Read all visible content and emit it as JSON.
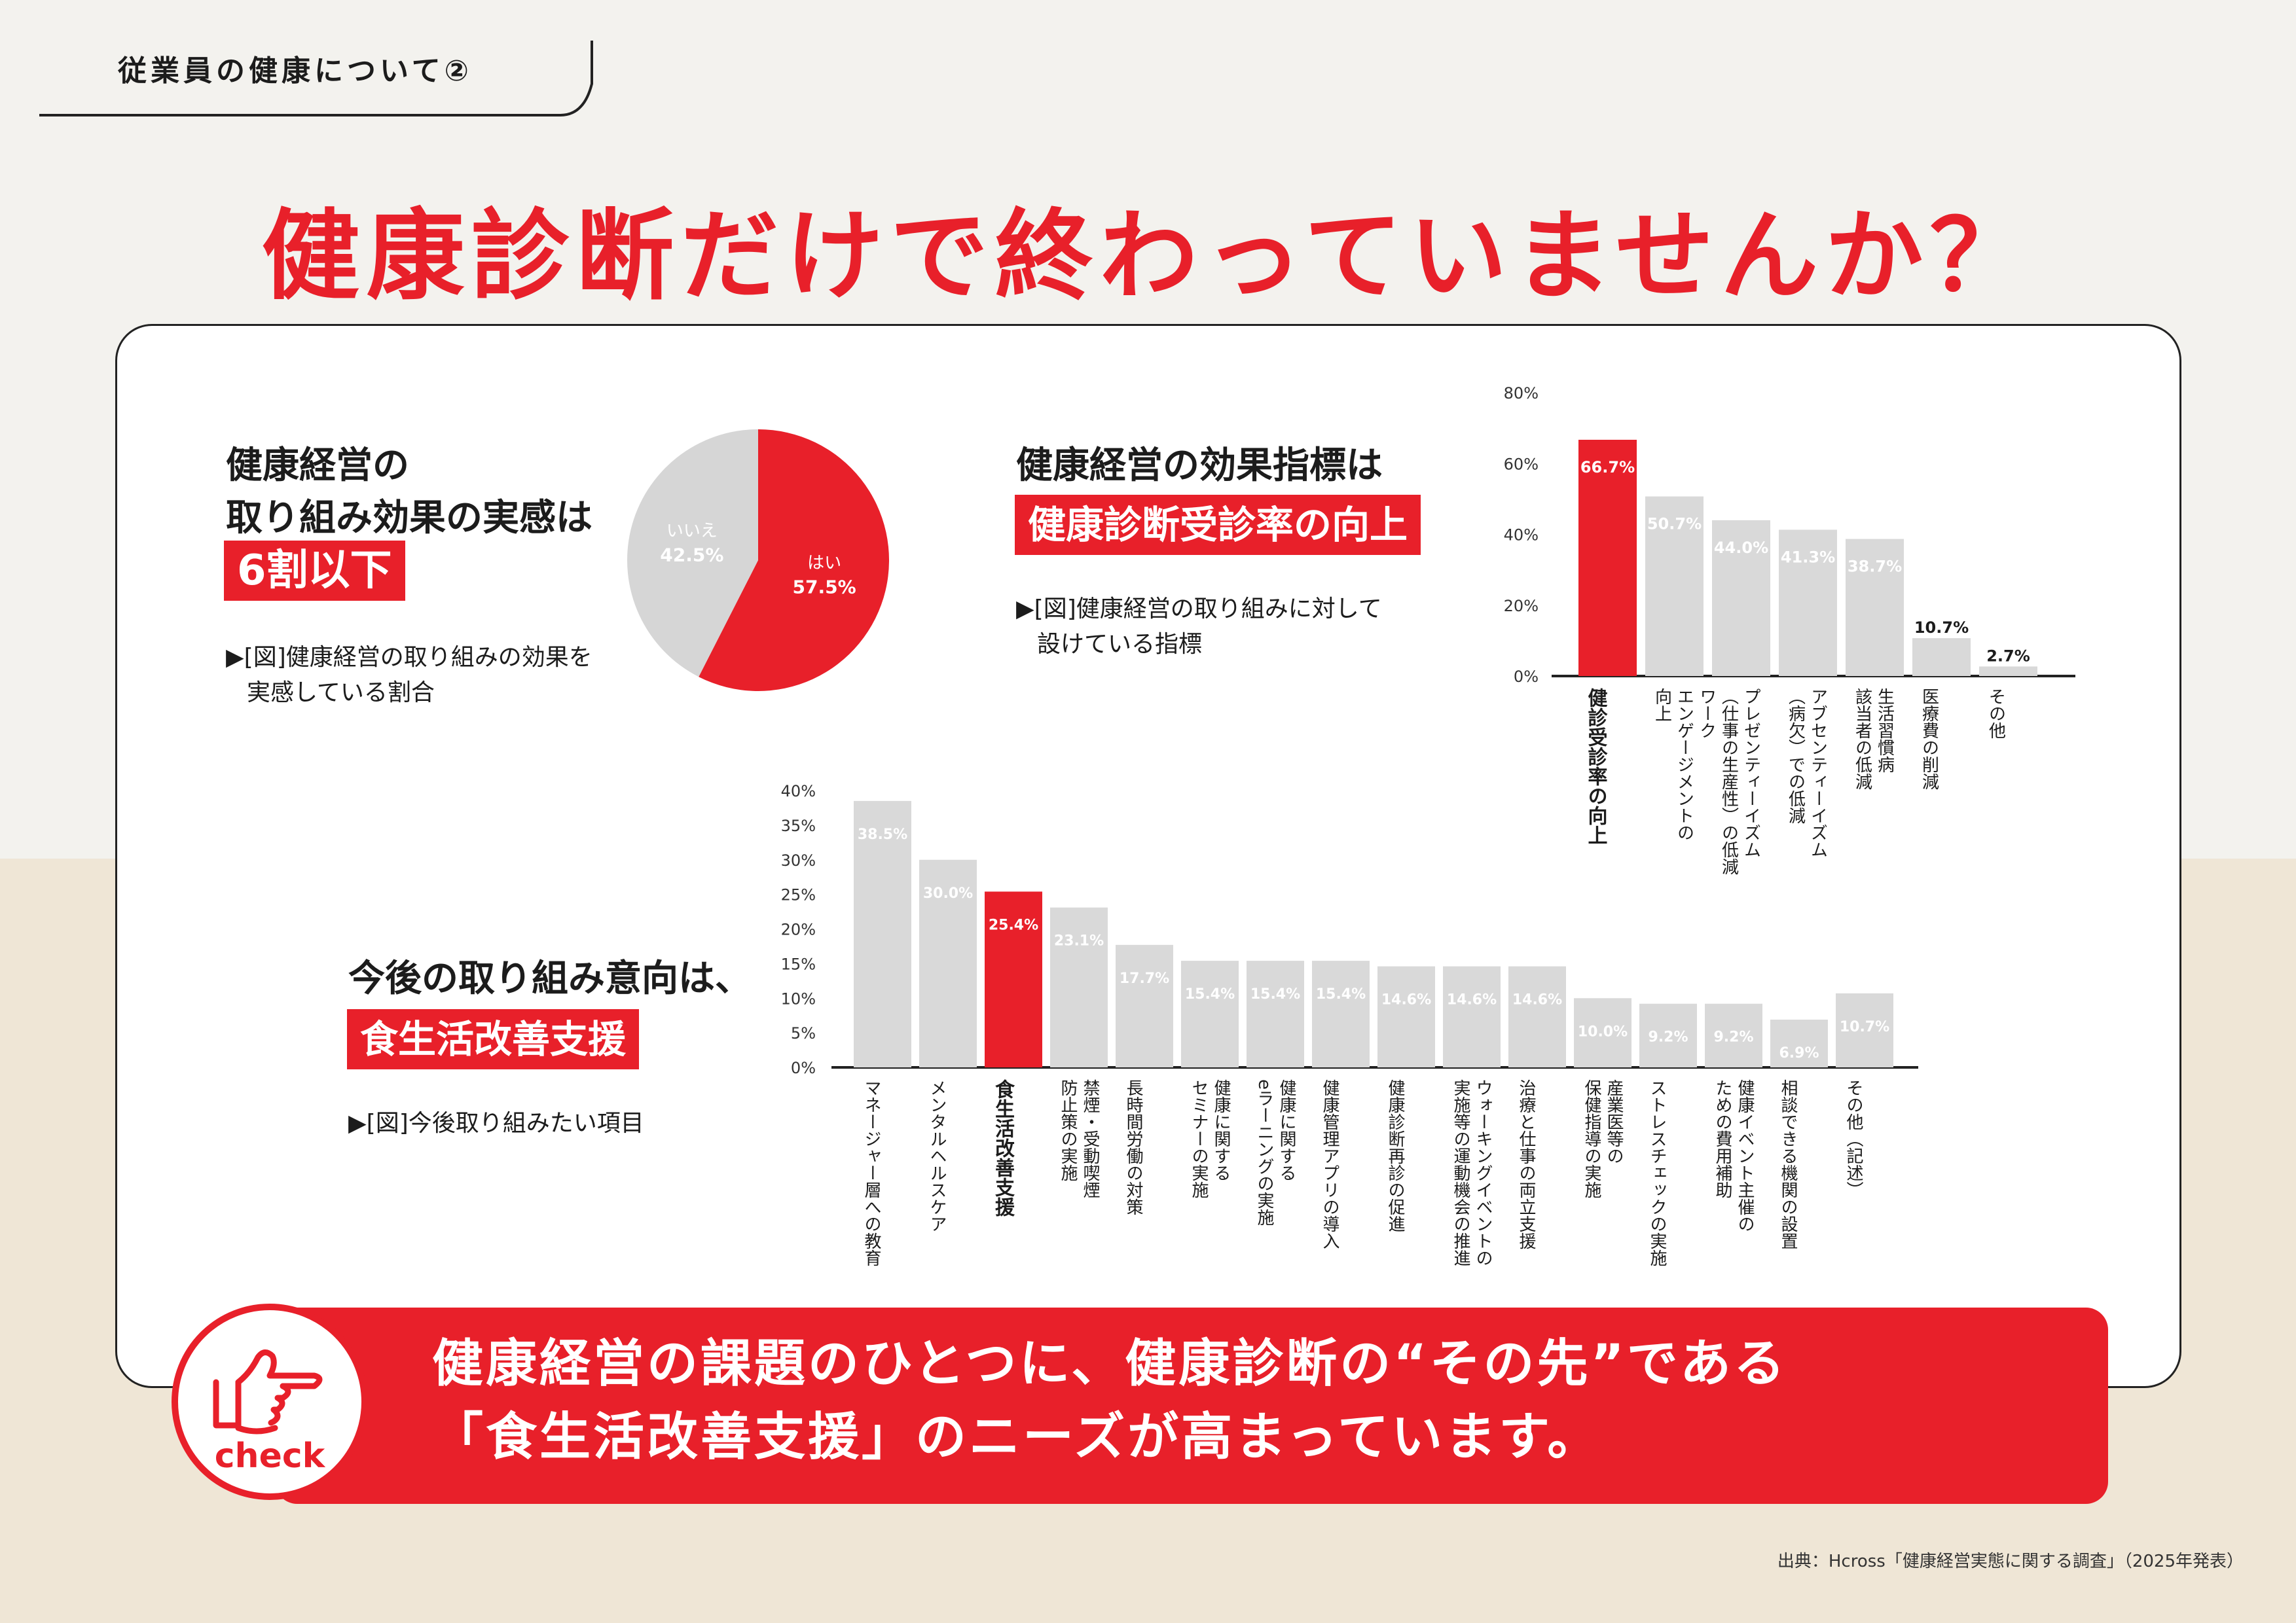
{
  "header": {
    "section_tag": "従業員の健康について②",
    "main_heading": "健康診断だけで終わっていませんか？"
  },
  "colors": {
    "accent": "#e8202a",
    "bar_gray": "#d9d9d9",
    "pie_gray": "#d6d6d6"
  },
  "block1": {
    "heading_line1": "健康経営の",
    "heading_line2": "取り組み効果の実感は",
    "highlight": "6割以下",
    "note_line1": "▶[図]健康経営の取り組みの効果を",
    "note_line2": "実感している割合"
  },
  "block2": {
    "heading": "健康経営の効果指標は",
    "highlight": "健康診断受診率の向上",
    "note_line1": "▶[図]健康経営の取り組みに対して",
    "note_line2": "設けている指標"
  },
  "block3": {
    "heading": "今後の取り組み意向は、",
    "highlight": "食生活改善支援",
    "note": "▶[図]今後取り組みたい項目"
  },
  "chart_data": [
    {
      "type": "pie",
      "categories": [
        "はい",
        "いいえ"
      ],
      "values": [
        57.5,
        42.5
      ],
      "value_labels": [
        "57.5%",
        "42.5%"
      ],
      "colors": [
        "#e8202a",
        "#d6d6d6"
      ]
    },
    {
      "type": "bar",
      "categories": [
        "健診受診率の向上",
        "ワーク\nエンゲージメントの\n向上",
        "プレゼンティーイズム\n（仕事の生産性）の低減",
        "アブセンティーイズム\n（病欠）での低減",
        "生活習慣病\n該当者の低減",
        "医療費の削減",
        "その他"
      ],
      "values": [
        66.7,
        50.7,
        44.0,
        41.3,
        38.7,
        10.7,
        2.7
      ],
      "value_labels": [
        "66.7%",
        "50.7%",
        "44.0%",
        "41.3%",
        "38.7%",
        "10.7%",
        "2.7%"
      ],
      "highlight_index": 0,
      "ylim": [
        0,
        80
      ],
      "yticks": [
        "0%",
        "20%",
        "40%",
        "60%",
        "80%"
      ]
    },
    {
      "type": "bar",
      "categories": [
        "マネージャー層への教育",
        "メンタルヘルスケア",
        "食生活改善支援",
        "禁煙・受動喫煙\n防止策の実施",
        "長時間労働の対策",
        "健康に関する\nセミナーの実施",
        "健康に関する\neラーニングの実施",
        "健康管理アプリの導入",
        "健康診断再診の促進",
        "ウォーキングイベントの\n実施等の運動機会の推進",
        "治療と仕事の両立支援",
        "産業医等の\n保健指導の実施",
        "ストレスチェックの実施",
        "健康イベント主催の\nための費用補助",
        "相談できる機関の設置",
        "その他（記述）"
      ],
      "values": [
        38.5,
        30.0,
        25.4,
        23.1,
        17.7,
        15.4,
        15.4,
        15.4,
        14.6,
        14.6,
        14.6,
        10.0,
        9.2,
        9.2,
        6.9,
        10.7
      ],
      "value_labels": [
        "38.5%",
        "30.0%",
        "25.4%",
        "23.1%",
        "17.7%",
        "15.4%",
        "15.4%",
        "15.4%",
        "14.6%",
        "14.6%",
        "14.6%",
        "10.0%",
        "9.2%",
        "9.2%",
        "6.9%",
        "10.7%"
      ],
      "highlight_index": 2,
      "ylim": [
        0,
        40
      ],
      "yticks": [
        "0%",
        "5%",
        "10%",
        "15%",
        "20%",
        "25%",
        "30%",
        "35%",
        "40%"
      ]
    }
  ],
  "check": {
    "label": "check",
    "icon": "pointing-hand-icon",
    "message_line1": "健康経営の課題のひとつに、健康診断の“その先”である",
    "message_line2": "「食生活改善支援」のニーズが高まっています。"
  },
  "source": "出典：Hcross「健康経営実態に関する調査」（2025年発表）"
}
